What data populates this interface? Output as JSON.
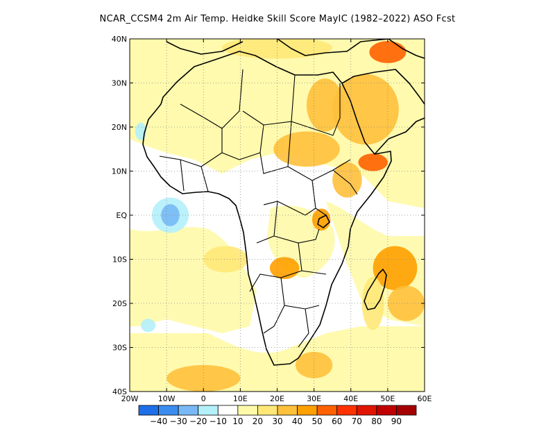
{
  "title": "NCAR_CCSM4 2m Air Temp. Heidke Skill Score MayIC (1982–2022) ASO Fcst",
  "map": {
    "lon_range": [
      -20,
      60
    ],
    "lat_range": [
      -40,
      40
    ],
    "x_ticks": [
      {
        "value": -20,
        "label": "20W"
      },
      {
        "value": -10,
        "label": "10W"
      },
      {
        "value": 0,
        "label": "0"
      },
      {
        "value": 10,
        "label": "10E"
      },
      {
        "value": 20,
        "label": "20E"
      },
      {
        "value": 30,
        "label": "30E"
      },
      {
        "value": 40,
        "label": "40E"
      },
      {
        "value": 50,
        "label": "50E"
      },
      {
        "value": 60,
        "label": "60E"
      }
    ],
    "y_ticks": [
      {
        "value": 40,
        "label": "40N"
      },
      {
        "value": 30,
        "label": "30N"
      },
      {
        "value": 20,
        "label": "20N"
      },
      {
        "value": 10,
        "label": "10N"
      },
      {
        "value": 0,
        "label": "EQ"
      },
      {
        "value": -10,
        "label": "10S"
      },
      {
        "value": -20,
        "label": "20S"
      },
      {
        "value": -30,
        "label": "30S"
      },
      {
        "value": -40,
        "label": "40S"
      }
    ],
    "grid": "dotted"
  },
  "colorbar": {
    "bins": [
      {
        "color": "#1e6ee8"
      },
      {
        "color": "#3c8cf0"
      },
      {
        "color": "#78b9f5"
      },
      {
        "color": "#b4f0fa"
      },
      {
        "color": "#ffffff"
      },
      {
        "color": "#fffaaa"
      },
      {
        "color": "#ffe878"
      },
      {
        "color": "#ffc03c"
      },
      {
        "color": "#ffa000"
      },
      {
        "color": "#ff6000"
      },
      {
        "color": "#ff3200"
      },
      {
        "color": "#e11400"
      },
      {
        "color": "#c00000"
      },
      {
        "color": "#a50000"
      }
    ],
    "labels": [
      "−40",
      "−30",
      "−20",
      "−10",
      "10",
      "20",
      "30",
      "40",
      "50",
      "60",
      "70",
      "80",
      "90"
    ]
  },
  "skill_patches": [
    {
      "region": "Arabian Peninsula",
      "lon": 44,
      "lat": 24,
      "rlon": 9,
      "rlat": 8,
      "bin": 7
    },
    {
      "region": "Egypt / Red Sea",
      "lon": 33,
      "lat": 25,
      "rlon": 5,
      "rlat": 6,
      "bin": 7
    },
    {
      "region": "Sahel / Chad",
      "lon": 28,
      "lat": 15,
      "rlon": 9,
      "rlat": 4,
      "bin": 7
    },
    {
      "region": "Ethiopia",
      "lon": 39,
      "lat": 8,
      "rlon": 4,
      "rlat": 4,
      "bin": 7
    },
    {
      "region": "Gulf of Aden",
      "lon": 46,
      "lat": 12,
      "rlon": 4,
      "rlat": 2,
      "bin": 9
    },
    {
      "region": "Lake Victoria",
      "lon": 32,
      "lat": -1,
      "rlon": 2.5,
      "rlat": 2.5,
      "bin": 8
    },
    {
      "region": "Zambia / Angola",
      "lon": 22,
      "lat": -12,
      "rlon": 4,
      "rlat": 2.5,
      "bin": 8
    },
    {
      "region": "Mozambique Channel",
      "lon": 52,
      "lat": -12,
      "rlon": 6,
      "rlat": 5,
      "bin": 8
    },
    {
      "region": "Southeast Indian Ocean",
      "lon": 55,
      "lat": -20,
      "rlon": 5,
      "rlat": 4,
      "bin": 7
    },
    {
      "region": "South Atlantic",
      "lon": 0,
      "lat": -37,
      "rlon": 10,
      "rlat": 3,
      "bin": 7
    },
    {
      "region": "South of Africa",
      "lon": 30,
      "lat": -34,
      "rlon": 5,
      "rlat": 3,
      "bin": 7
    },
    {
      "region": "Madagascar",
      "lon": 46,
      "lat": -20,
      "rlon": 3,
      "rlat": 6,
      "bin": 6
    },
    {
      "region": "Atlantic off Angola",
      "lon": 6,
      "lat": -10,
      "rlon": 6,
      "rlat": 3,
      "bin": 6
    },
    {
      "region": "Mediterranean",
      "lon": 20,
      "lat": 38,
      "rlon": 15,
      "rlat": 2.5,
      "bin": 6
    },
    {
      "region": "Eastern Mediterranean",
      "lon": 50,
      "lat": 37,
      "rlon": 5,
      "rlat": 2.5,
      "bin": 9
    }
  ],
  "negative_patches": [
    {
      "region": "Gulf of Guinea",
      "lon": -9,
      "lat": 0,
      "rlon": 2.5,
      "rlat": 2.5,
      "bin": 2
    },
    {
      "region": "Gulf of Guinea ring",
      "lon": -9,
      "lat": 0,
      "rlon": 5,
      "rlat": 4,
      "bin": 3
    },
    {
      "region": "South Atlantic",
      "lon": -15,
      "lat": -25,
      "rlon": 2,
      "rlat": 1.5,
      "bin": 3
    },
    {
      "region": "West Africa coast",
      "lon": -17,
      "lat": 19,
      "rlon": 1.5,
      "rlat": 2,
      "bin": 3
    }
  ]
}
